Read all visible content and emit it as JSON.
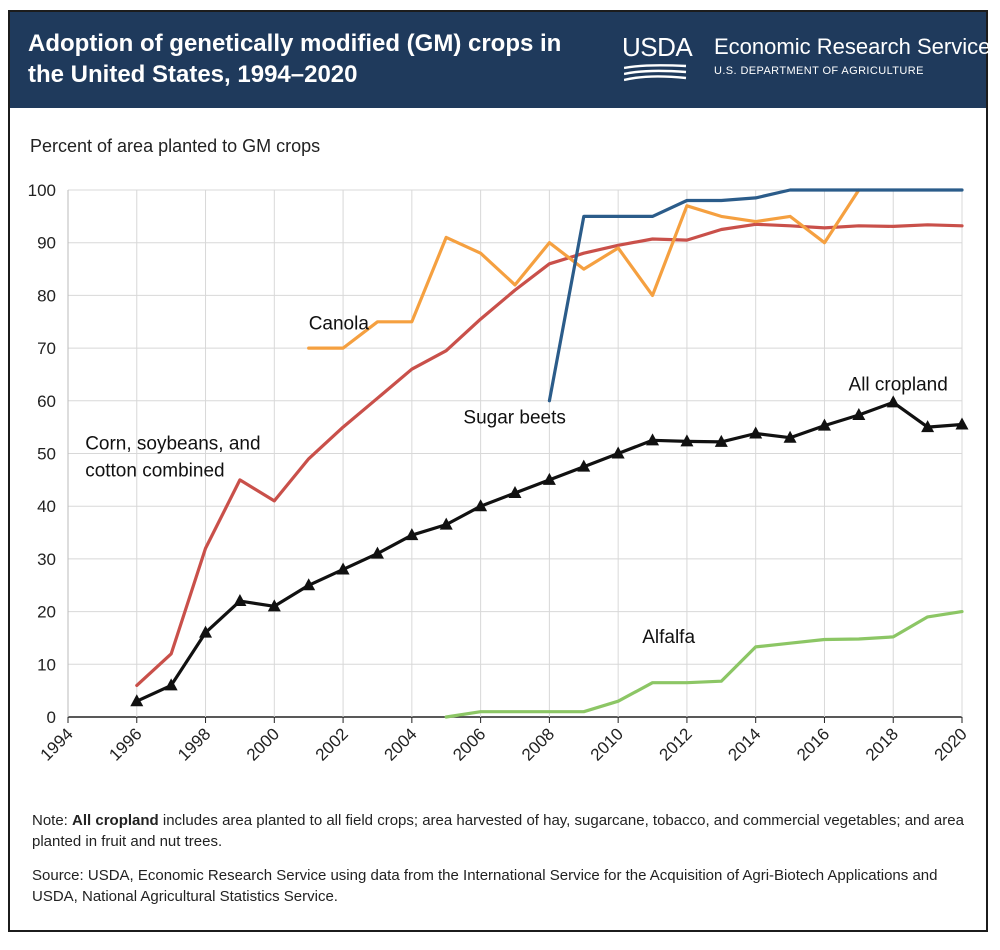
{
  "header": {
    "title": "Adoption of genetically modified (GM) crops in the United States, 1994–2020",
    "logo_text": "USDA",
    "agency": "Economic Research Service",
    "department": "U.S. DEPARTMENT OF AGRICULTURE"
  },
  "notes": {
    "note_prefix": "Note: ",
    "note_bold": "All cropland",
    "note_rest": " includes area planted to all field crops; area harvested of hay, sugarcane, tobacco, and commercial vegetables; and area planted in fruit and nut trees.",
    "source": "Source: USDA, Economic Research Service using data from the International Service for the Acquisition of Agri-Biotech Applications and USDA, National Agricultural Statistics Service."
  },
  "colors": {
    "banner": "#1f3a5c",
    "corn": "#c9504a",
    "canola": "#f5a040",
    "sugar_beets": "#2b5c8a",
    "all_cropland": "#111111",
    "alfalfa": "#8cc665"
  },
  "chart_data": {
    "type": "line",
    "title": "Adoption of genetically modified (GM) crops in the United States, 1994–2020",
    "ylabel": "Percent of area planted to GM crops",
    "xlabel": "",
    "xlim": [
      1994,
      2020
    ],
    "ylim": [
      0,
      100
    ],
    "x_ticks": [
      "1994",
      "1996",
      "1998",
      "2000",
      "2002",
      "2004",
      "2006",
      "2008",
      "2010",
      "2012",
      "2014",
      "2016",
      "2018",
      "2020"
    ],
    "y_ticks": [
      "0",
      "10",
      "20",
      "30",
      "40",
      "50",
      "60",
      "70",
      "80",
      "90",
      "100"
    ],
    "grid": true,
    "series": [
      {
        "name": "Corn, soybeans, and cotton combined",
        "color": "#c9504a",
        "x": [
          1996,
          1997,
          1998,
          1999,
          2000,
          2001,
          2002,
          2003,
          2004,
          2005,
          2006,
          2007,
          2008,
          2009,
          2010,
          2011,
          2012,
          2013,
          2014,
          2015,
          2016,
          2017,
          2018,
          2019,
          2020
        ],
        "y": [
          6,
          12,
          32,
          45,
          41,
          49,
          55,
          60.5,
          66,
          69.5,
          75.5,
          81,
          86,
          88,
          89.5,
          90.7,
          90.5,
          92.5,
          93.5,
          93.2,
          92.8,
          93.2,
          93.1,
          93.4,
          93.2
        ]
      },
      {
        "name": "Canola",
        "color": "#f5a040",
        "x": [
          2001,
          2002,
          2003,
          2004,
          2005,
          2006,
          2007,
          2008,
          2009,
          2010,
          2011,
          2012,
          2013,
          2014,
          2015,
          2016,
          2017
        ],
        "y": [
          70,
          70,
          75,
          75,
          91,
          88,
          82,
          90,
          85,
          89,
          80,
          97,
          95,
          94,
          95,
          90,
          100
        ]
      },
      {
        "name": "Sugar beets",
        "color": "#2b5c8a",
        "x": [
          2008,
          2009,
          2010,
          2011,
          2012,
          2013,
          2014,
          2015,
          2016,
          2017,
          2018,
          2019,
          2020
        ],
        "y": [
          60,
          95,
          95,
          95,
          98,
          98,
          98.5,
          100,
          100,
          100,
          100,
          100,
          100
        ]
      },
      {
        "name": "All cropland",
        "color": "#111111",
        "x": [
          1996,
          1997,
          1998,
          1999,
          2000,
          2001,
          2002,
          2003,
          2004,
          2005,
          2006,
          2007,
          2008,
          2009,
          2010,
          2011,
          2012,
          2013,
          2014,
          2015,
          2016,
          2017,
          2018,
          2019,
          2020
        ],
        "y": [
          3,
          6,
          16,
          22,
          21,
          25,
          28,
          31,
          34.5,
          36.5,
          40,
          42.5,
          45,
          47.5,
          50,
          52.5,
          52.3,
          52.2,
          53.8,
          53,
          55.3,
          57.3,
          59.7,
          55,
          55.5
        ]
      },
      {
        "name": "Alfalfa",
        "color": "#8cc665",
        "x": [
          2005,
          2006,
          2007,
          2008,
          2009,
          2010,
          2011,
          2012,
          2013,
          2014,
          2015,
          2016,
          2017,
          2018,
          2019,
          2020
        ],
        "y": [
          0,
          1,
          1,
          1,
          1,
          3,
          6.5,
          6.5,
          6.8,
          13.3,
          14,
          14.7,
          14.8,
          15.2,
          19,
          20
        ]
      }
    ],
    "annotations": [
      {
        "text": "Canola",
        "series": "Canola"
      },
      {
        "text": "Corn, soybeans, and",
        "series": "Corn, soybeans, and cotton combined"
      },
      {
        "text": "cotton combined",
        "series": "Corn, soybeans, and cotton combined"
      },
      {
        "text": "Sugar beets",
        "series": "Sugar beets"
      },
      {
        "text": "All cropland",
        "series": "All cropland"
      },
      {
        "text": "Alfalfa",
        "series": "Alfalfa"
      }
    ]
  }
}
